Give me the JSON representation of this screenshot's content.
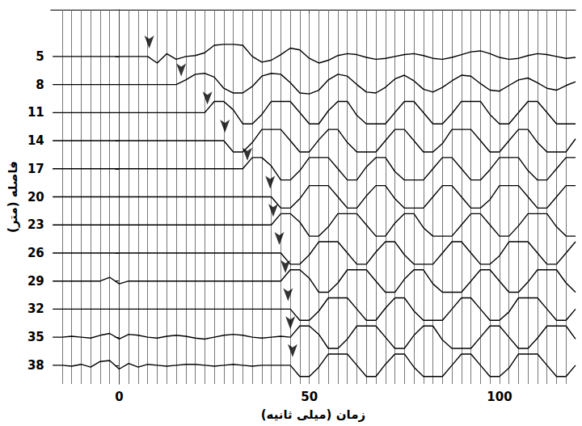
{
  "chart_data": {
    "type": "line",
    "x_label": "زمان (میلی ثانیه)",
    "y_label": "فاصله (متر)",
    "xlim": [
      -18,
      120
    ],
    "xticks": [
      0,
      50,
      100
    ],
    "ylim": [
      40,
      0
    ],
    "yticks": [
      5,
      8,
      11,
      14,
      17,
      20,
      23,
      26,
      29,
      32,
      35,
      38
    ],
    "grid": false,
    "color": "#000000",
    "line_style": "solid",
    "x": [
      -17.5,
      -15,
      -12.5,
      -10,
      -7.5,
      -5,
      -2.5,
      0,
      2.5,
      5,
      7.5,
      10,
      12.5,
      15,
      17.5,
      20,
      22.5,
      25,
      27.5,
      30,
      32.5,
      35,
      37.5,
      40,
      42.5,
      45,
      47.5,
      50,
      52.5,
      55,
      57.5,
      60,
      62.5,
      65,
      67.5,
      70,
      72.5,
      75,
      77.5,
      80,
      82.5,
      85,
      87.5,
      90,
      92.5,
      95,
      97.5,
      100,
      102.5,
      105,
      107.5,
      110,
      112.5,
      115,
      117.5,
      120
    ],
    "traces": [
      [
        5,
        5,
        5,
        5,
        5,
        5,
        5,
        5,
        5,
        5,
        5,
        5.7,
        4.7,
        5.3,
        5,
        4.9,
        4.6,
        3.8,
        3.7,
        3.7,
        3.8,
        5,
        5.6,
        5.4,
        4.8,
        4.1,
        4.3,
        5.2,
        5.7,
        5.4,
        4.9,
        4.7,
        4.8,
        5.1,
        5.3,
        5.2,
        5,
        4.8,
        4.7,
        4.9,
        5.2,
        5.3,
        5.1,
        4.8,
        4.5,
        4.4,
        4.7,
        5.1,
        5.3,
        5.2,
        4.9,
        4.7,
        4.8,
        5,
        5.2,
        5.1
      ],
      [
        8,
        8,
        8,
        8,
        8,
        8,
        8,
        8,
        8,
        8,
        8,
        8,
        8,
        8,
        7.5,
        6.9,
        6.8,
        7.2,
        8.4,
        8.9,
        8.9,
        8.2,
        7.1,
        6.8,
        6.9,
        7.8,
        8.9,
        9,
        8.6,
        7.5,
        6.9,
        7.1,
        8,
        8.8,
        8.9,
        8.3,
        7.4,
        7,
        7.6,
        8.5,
        8.8,
        8.3,
        7.6,
        7,
        7.1,
        7.9,
        8.6,
        8.7,
        8.1,
        7.5,
        7.3,
        7.8,
        8.4,
        8.6,
        8.1,
        7.7
      ],
      [
        11,
        11,
        11,
        11,
        11,
        11,
        11,
        11,
        11,
        11,
        11,
        11,
        11,
        11,
        11,
        11,
        11,
        9.8,
        9.8,
        10.7,
        12.2,
        12.2,
        11.2,
        9.8,
        9.8,
        9.8,
        11,
        12.2,
        12.2,
        10.8,
        9.8,
        9.8,
        11.3,
        12.2,
        12.2,
        12.2,
        11,
        9.8,
        9.8,
        11,
        12.2,
        12.2,
        11.1,
        9.8,
        9.8,
        9.8,
        11.2,
        12.2,
        12.2,
        11,
        9.8,
        9.8,
        11,
        12.2,
        12.2,
        12.2
      ],
      [
        14,
        14,
        14,
        14,
        14,
        14,
        14,
        14,
        14,
        14,
        14,
        14,
        14,
        14,
        14,
        14,
        14,
        14,
        14,
        15.2,
        15.2,
        14.2,
        12.8,
        12.8,
        12.8,
        14,
        15.2,
        15.2,
        13.9,
        12.8,
        12.8,
        14.2,
        15.2,
        15.2,
        15.2,
        14,
        12.8,
        12.8,
        14,
        15.2,
        15.2,
        14.3,
        12.8,
        12.8,
        12.8,
        14,
        15.2,
        15.2,
        14,
        12.8,
        12.8,
        14.2,
        15.2,
        15.2,
        15.2,
        13.8
      ],
      [
        17,
        17,
        17,
        17,
        17,
        17,
        17,
        17,
        17,
        17,
        17,
        17,
        17,
        17,
        17,
        17,
        17,
        17,
        17,
        17,
        17,
        15.8,
        15.8,
        16.7,
        18.2,
        18.2,
        17.2,
        15.8,
        15.8,
        15.8,
        17,
        18.2,
        18.2,
        16.8,
        15.8,
        15.8,
        17.3,
        18.2,
        18.2,
        18.2,
        17,
        15.8,
        15.8,
        17,
        18.2,
        18.2,
        17.1,
        15.8,
        15.8,
        15.8,
        17.2,
        18.2,
        18.2,
        17,
        15.8,
        15.8
      ],
      [
        20,
        20,
        20,
        20,
        20,
        20,
        20,
        20,
        20,
        20,
        20,
        20,
        20,
        20,
        20,
        20,
        20,
        20,
        20,
        20,
        20,
        20,
        20,
        20,
        21.2,
        21.2,
        20.2,
        18.8,
        18.8,
        18.8,
        20,
        21.2,
        21.2,
        19.9,
        18.8,
        18.8,
        20.2,
        21.2,
        21.2,
        21.2,
        20,
        18.8,
        18.8,
        20,
        21.2,
        21.2,
        20.3,
        18.8,
        18.8,
        18.8,
        20,
        21.2,
        21.2,
        20,
        18.8,
        18.8
      ],
      [
        23,
        23,
        23,
        23,
        23,
        23,
        23,
        23,
        23,
        23,
        23,
        23,
        23,
        23,
        23,
        23,
        23,
        23,
        23,
        23,
        23,
        23,
        23,
        23,
        21.8,
        21.8,
        22.7,
        24.2,
        24.2,
        23.2,
        21.8,
        21.8,
        21.8,
        23,
        24.2,
        24.2,
        22.8,
        21.8,
        21.8,
        23.3,
        24.2,
        24.2,
        24.2,
        23,
        21.8,
        21.8,
        23,
        24.2,
        24.2,
        23.1,
        21.8,
        21.8,
        21.8,
        23.2,
        24.2,
        24.2
      ],
      [
        26,
        26,
        26,
        26,
        26,
        26,
        26,
        26,
        26,
        26,
        26,
        26,
        26,
        26,
        26,
        26,
        26,
        26,
        26,
        26,
        26,
        26,
        26,
        26,
        26,
        27.2,
        27.2,
        26.2,
        24.8,
        24.8,
        24.8,
        26,
        27.2,
        27.2,
        25.9,
        24.8,
        24.8,
        26.2,
        27.2,
        27.2,
        27.2,
        26,
        24.8,
        24.8,
        26,
        27.2,
        27.2,
        26.3,
        24.8,
        24.8,
        24.8,
        26,
        27.2,
        27.2,
        26,
        24.8
      ],
      [
        29,
        29,
        29,
        29,
        29,
        29,
        28.6,
        29.3,
        29,
        29,
        29,
        29,
        29,
        29,
        29,
        29,
        29,
        29,
        29,
        29,
        29,
        29,
        29,
        29,
        29,
        27.8,
        27.8,
        28.7,
        30.2,
        30.2,
        29.2,
        27.8,
        27.8,
        27.8,
        29,
        30.2,
        30.2,
        28.8,
        27.8,
        27.8,
        29.3,
        30.2,
        30.2,
        30.2,
        29,
        27.8,
        27.8,
        29,
        30.2,
        30.2,
        29.1,
        27.8,
        27.8,
        27.8,
        29.2,
        30.2
      ],
      [
        32,
        32,
        32,
        32,
        32,
        32,
        32,
        32,
        32,
        32,
        32,
        32,
        32,
        32,
        32,
        32,
        32,
        32,
        32,
        32,
        32,
        32,
        32,
        32,
        32,
        32,
        33.2,
        33.2,
        32.2,
        30.8,
        30.8,
        30.8,
        32,
        33.2,
        33.2,
        31.9,
        30.8,
        30.8,
        32.2,
        33.2,
        33.2,
        33.2,
        32,
        30.8,
        30.8,
        32,
        33.2,
        33.2,
        32.3,
        30.8,
        30.8,
        30.8,
        32,
        33.2,
        33.2,
        32
      ],
      [
        35,
        35,
        34.9,
        35,
        35.1,
        34.8,
        34.6,
        35.2,
        34.7,
        34.8,
        35,
        35.1,
        34.9,
        34.8,
        34.9,
        35.1,
        35.2,
        35,
        34.8,
        34.7,
        34.8,
        35,
        35.1,
        35,
        34.9,
        35,
        33.8,
        33.8,
        34.7,
        36.2,
        36.2,
        35.2,
        33.8,
        33.8,
        33.8,
        35,
        36.2,
        36.2,
        34.8,
        33.8,
        33.8,
        35.3,
        36.2,
        36.2,
        36.2,
        35,
        33.8,
        33.8,
        35,
        36.2,
        36.2,
        35.1,
        33.8,
        33.8,
        33.8,
        35.2
      ],
      [
        38,
        38,
        38.1,
        37.9,
        38.2,
        37.6,
        37.5,
        38.4,
        37.8,
        38.2,
        37.9,
        38,
        38.1,
        38,
        37.9,
        37.9,
        38,
        38.1,
        38,
        37.9,
        38,
        38.1,
        38,
        38,
        38,
        38,
        39.2,
        39.2,
        38.2,
        36.8,
        36.8,
        36.8,
        38,
        39.2,
        39.2,
        37.9,
        36.8,
        36.8,
        38.2,
        39.2,
        39.2,
        39.2,
        38,
        36.8,
        36.8,
        38,
        39.2,
        39.2,
        38.3,
        36.8,
        36.8,
        36.8,
        38,
        39.2,
        39.2,
        38
      ]
    ],
    "first_arrivals": {
      "distances": [
        5,
        8,
        11,
        14,
        17,
        20,
        23,
        26,
        29,
        32,
        35,
        38
      ],
      "times": [
        7.9,
        16.3,
        23.2,
        27.8,
        33.7,
        39.7,
        40.5,
        42.1,
        43.7,
        44.4,
        45,
        45.6
      ],
      "marker": "arrow"
    },
    "timing_lines": [
      -15,
      -12.5,
      -10,
      -7.5,
      -5,
      -2.5,
      0,
      2.5,
      5,
      7.5,
      10,
      12.5,
      15,
      17.5,
      20,
      22.5,
      25,
      27.5,
      30,
      32.5,
      35,
      37.5,
      40,
      42.5,
      45,
      47.5,
      50,
      52.5,
      55,
      57.5,
      60,
      62.5,
      65,
      67.5,
      70,
      72.5,
      75,
      77.5,
      80,
      82.5,
      85,
      87.5,
      90,
      92.5,
      95,
      97.5,
      100,
      102.5,
      105,
      107.5,
      110,
      112.5,
      115,
      117.5
    ]
  }
}
